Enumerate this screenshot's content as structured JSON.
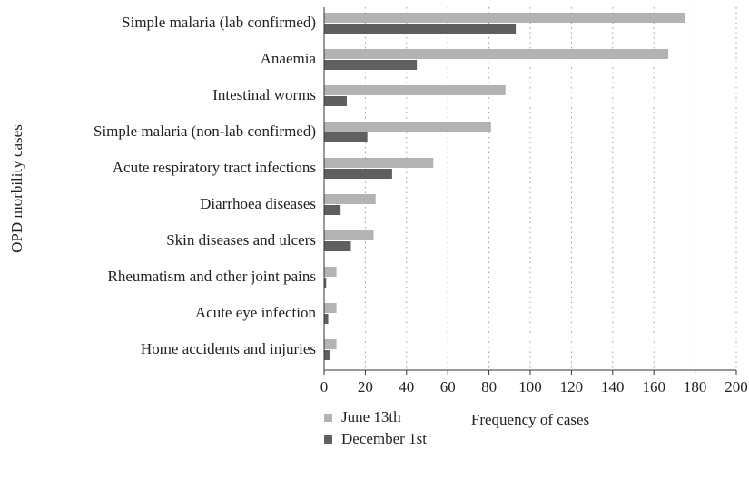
{
  "chart_data": {
    "type": "hbar",
    "xlabel": "Frequency of cases",
    "ylabel": "OPD morbility cases",
    "categories": [
      "Simple malaria (lab confirmed)",
      "Anaemia",
      "Intestinal worms",
      "Simple malaria (non-lab confirmed)",
      "Acute respiratory tract infections",
      "Diarrhoea diseases",
      "Skin diseases and ulcers",
      "Rheumatism and other joint pains",
      "Acute eye infection",
      "Home accidents and injuries"
    ],
    "series": [
      {
        "name": "June 13th",
        "color": "#b3b3b3",
        "values": [
          175,
          167,
          88,
          81,
          53,
          25,
          24,
          6,
          6,
          6
        ]
      },
      {
        "name": "December 1st",
        "color": "#5f5f5f",
        "values": [
          93,
          45,
          11,
          21,
          33,
          8,
          13,
          1,
          2,
          3
        ]
      }
    ],
    "xlim": [
      0,
      200
    ],
    "xticks": [
      0,
      20,
      40,
      60,
      80,
      100,
      120,
      140,
      160,
      180,
      200
    ],
    "grid": true
  }
}
